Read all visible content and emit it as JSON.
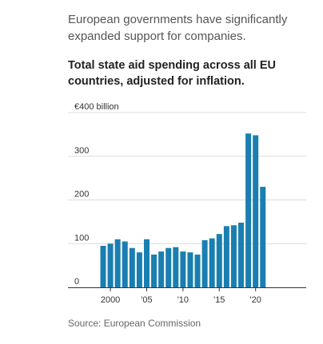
{
  "intro": "European governments have significantly expanded support for companies.",
  "headline": "Total state aid spending across all EU countries, adjusted for inflation.",
  "source": "Source: European Commission",
  "chart_data": {
    "type": "bar",
    "color": "#1a7fb0",
    "years": [
      1999,
      2000,
      2001,
      2002,
      2003,
      2004,
      2005,
      2006,
      2007,
      2008,
      2009,
      2010,
      2011,
      2012,
      2013,
      2014,
      2015,
      2016,
      2017,
      2018,
      2019,
      2020,
      2021,
      2022
    ],
    "values": [
      95,
      100,
      110,
      105,
      90,
      80,
      110,
      75,
      82,
      90,
      92,
      82,
      80,
      75,
      108,
      112,
      122,
      140,
      142,
      148,
      352,
      348,
      230,
      0
    ],
    "ylim": [
      0,
      400
    ],
    "y_ticks": [
      {
        "value": 0,
        "label": "0"
      },
      {
        "value": 100,
        "label": "100"
      },
      {
        "value": 200,
        "label": "200"
      },
      {
        "value": 300,
        "label": "300"
      },
      {
        "value": 400,
        "label": "€400 billion"
      }
    ],
    "x_ticks": [
      {
        "year": 2000,
        "label": "2000"
      },
      {
        "year": 2005,
        "label": "'05"
      },
      {
        "year": 2010,
        "label": "'10"
      },
      {
        "year": 2015,
        "label": "'15"
      },
      {
        "year": 2020,
        "label": "'20"
      }
    ],
    "grid": true
  }
}
